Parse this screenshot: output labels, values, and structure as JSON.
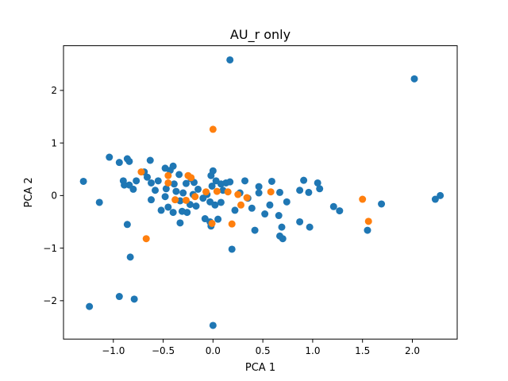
{
  "chart_data": {
    "type": "scatter",
    "title": "AU_r only",
    "xlabel": "PCA 1",
    "ylabel": "PCA 2",
    "xlim": [
      -1.5,
      2.45
    ],
    "ylim": [
      -2.73,
      2.85
    ],
    "x_ticks": [
      -1.0,
      -0.5,
      0.0,
      0.5,
      1.0,
      1.5,
      2.0
    ],
    "y_ticks": [
      -2,
      -1,
      0,
      1,
      2
    ],
    "x_tick_labels": [
      "−1.0",
      "−0.5",
      "0.0",
      "0.5",
      "1.0",
      "1.5",
      "2.0"
    ],
    "y_tick_labels": [
      "−2",
      "−1",
      "0",
      "1",
      "2"
    ],
    "grid": false,
    "series": [
      {
        "color": "#1f77b4",
        "points": [
          [
            0.17,
            2.58
          ],
          [
            2.02,
            2.22
          ],
          [
            2.28,
            0.0
          ],
          [
            2.23,
            -0.07
          ],
          [
            1.69,
            -0.16
          ],
          [
            1.55,
            -0.66
          ],
          [
            1.27,
            -0.29
          ],
          [
            1.21,
            -0.21
          ],
          [
            1.05,
            0.24
          ],
          [
            1.07,
            0.13
          ],
          [
            0.96,
            0.06
          ],
          [
            0.91,
            0.29
          ],
          [
            0.87,
            0.1
          ],
          [
            0.97,
            -0.6
          ],
          [
            0.87,
            -0.5
          ],
          [
            0.7,
            -0.82
          ],
          [
            0.67,
            -0.77
          ],
          [
            0.69,
            -0.6
          ],
          [
            0.66,
            -0.38
          ],
          [
            0.74,
            -0.12
          ],
          [
            0.67,
            0.06
          ],
          [
            0.59,
            0.27
          ],
          [
            0.57,
            -0.18
          ],
          [
            0.52,
            -0.35
          ],
          [
            0.42,
            -0.66
          ],
          [
            0.46,
            0.05
          ],
          [
            0.46,
            0.17
          ],
          [
            0.32,
            0.28
          ],
          [
            0.39,
            -0.24
          ],
          [
            0.35,
            -0.05
          ],
          [
            0.27,
            0.05
          ],
          [
            0.22,
            -0.28
          ],
          [
            0.17,
            0.26
          ],
          [
            0.13,
            0.24
          ],
          [
            0.19,
            -1.02
          ],
          [
            0.0,
            0.47
          ],
          [
            -0.02,
            0.38
          ],
          [
            0.03,
            0.28
          ],
          [
            0.08,
            0.22
          ],
          [
            -0.01,
            0.18
          ],
          [
            0.1,
            0.1
          ],
          [
            0.08,
            -0.13
          ],
          [
            0.02,
            -0.18
          ],
          [
            -0.03,
            -0.12
          ],
          [
            -0.06,
            0.02
          ],
          [
            -0.1,
            -0.05
          ],
          [
            -0.15,
            0.12
          ],
          [
            -0.17,
            -0.2
          ],
          [
            -0.08,
            -0.44
          ],
          [
            -0.03,
            -0.5
          ],
          [
            -0.19,
            0.25
          ],
          [
            -0.22,
            0.32
          ],
          [
            -0.27,
            0.23
          ],
          [
            -0.3,
            0.05
          ],
          [
            -0.2,
            0.02
          ],
          [
            -0.23,
            -0.17
          ],
          [
            -0.26,
            -0.32
          ],
          [
            -0.34,
            0.4
          ],
          [
            -0.39,
            0.22
          ],
          [
            -0.37,
            0.08
          ],
          [
            -0.33,
            -0.1
          ],
          [
            -0.31,
            -0.3
          ],
          [
            -0.33,
            -0.52
          ],
          [
            -0.45,
            -0.22
          ],
          [
            -0.4,
            -0.32
          ],
          [
            -0.47,
            0.13
          ],
          [
            -0.48,
            -0.02
          ],
          [
            -0.43,
            0.48
          ],
          [
            -0.4,
            0.56
          ],
          [
            -0.52,
            -0.28
          ],
          [
            -0.48,
            0.52
          ],
          [
            -0.55,
            0.28
          ],
          [
            -0.58,
            0.1
          ],
          [
            -0.62,
            0.24
          ],
          [
            -0.62,
            -0.08
          ],
          [
            -0.66,
            0.35
          ],
          [
            -0.69,
            0.45
          ],
          [
            -0.63,
            0.67
          ],
          [
            -0.77,
            0.28
          ],
          [
            -0.8,
            0.12
          ],
          [
            -0.84,
            0.2
          ],
          [
            -0.84,
            0.65
          ],
          [
            -0.86,
            0.7
          ],
          [
            -0.89,
            0.2
          ],
          [
            -0.9,
            0.28
          ],
          [
            -0.94,
            0.63
          ],
          [
            -1.04,
            0.73
          ],
          [
            -1.14,
            -0.13
          ],
          [
            -1.3,
            0.27
          ],
          [
            -0.86,
            -0.55
          ],
          [
            -0.83,
            -1.17
          ],
          [
            -0.94,
            -1.92
          ],
          [
            -0.79,
            -1.97
          ],
          [
            -1.24,
            -2.11
          ],
          [
            0.0,
            -2.47
          ],
          [
            0.05,
            -0.45
          ],
          [
            -0.02,
            -0.58
          ]
        ]
      },
      {
        "color": "#ff7f0e",
        "points": [
          [
            0.0,
            1.26
          ],
          [
            -0.72,
            0.45
          ],
          [
            -0.45,
            0.38
          ],
          [
            -0.45,
            0.24
          ],
          [
            -0.38,
            -0.08
          ],
          [
            -0.25,
            0.38
          ],
          [
            -0.22,
            0.34
          ],
          [
            -0.18,
            -0.02
          ],
          [
            -0.07,
            0.07
          ],
          [
            0.04,
            0.08
          ],
          [
            0.15,
            0.07
          ],
          [
            0.25,
            0.02
          ],
          [
            0.28,
            -0.18
          ],
          [
            0.34,
            -0.04
          ],
          [
            0.58,
            0.07
          ],
          [
            1.5,
            -0.07
          ],
          [
            1.56,
            -0.49
          ],
          [
            -0.67,
            -0.82
          ],
          [
            0.19,
            -0.54
          ],
          [
            -0.01,
            -0.53
          ],
          [
            -0.27,
            -0.09
          ]
        ]
      }
    ]
  }
}
